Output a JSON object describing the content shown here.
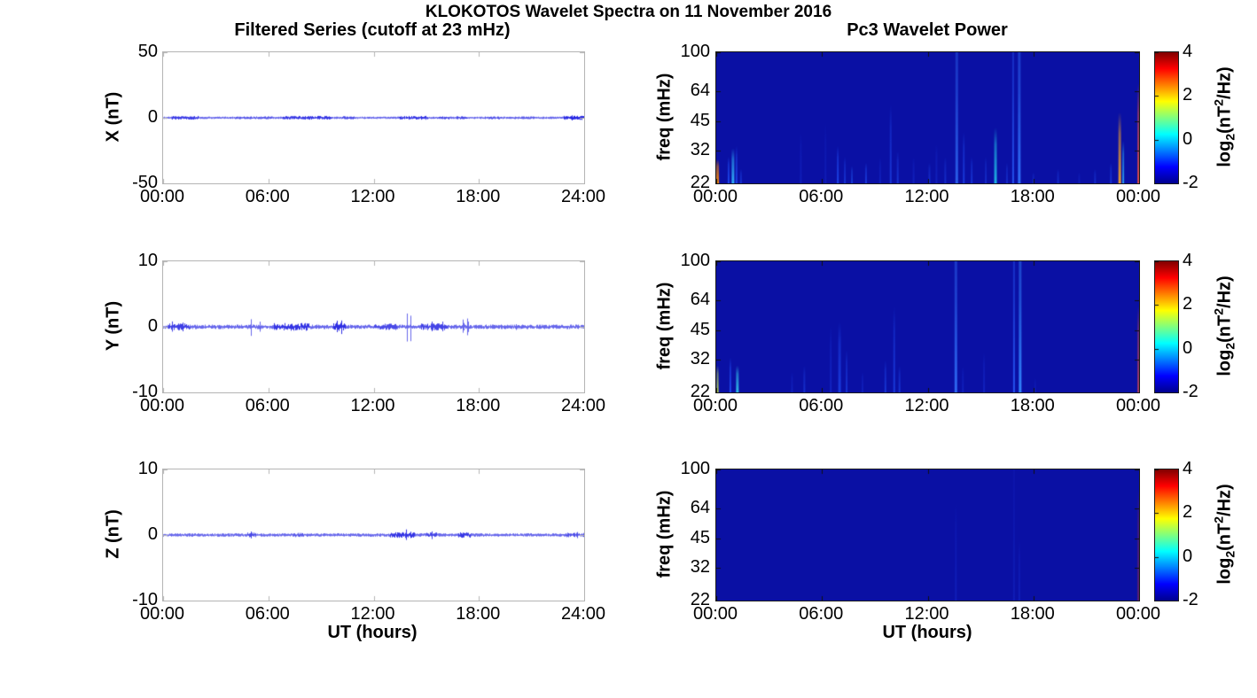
{
  "figure": {
    "title": "KLOKOTOS Wavelet Spectra on 11 November 2016",
    "left_column_title": "Filtered Series (cutoff at 23 mHz)",
    "right_column_title": "Pc3 Wavelet Power",
    "xlabel": "UT (hours)"
  },
  "colorbar": {
    "label_parts": {
      "pre": "log",
      "sub": "2",
      "mid": "(nT",
      "sup": "2",
      "post": "/Hz)"
    },
    "tick_labels": [
      "4",
      "2",
      "0",
      "-2"
    ],
    "tick_values": [
      4,
      2,
      0,
      -2
    ],
    "range": [
      -2,
      4
    ],
    "colormap": "jet",
    "gradient_stops": [
      "#00008f",
      "#0000ff",
      "#00ffff",
      "#ffff00",
      "#ff0000",
      "#800000"
    ],
    "gradient_positions": [
      0,
      0.125,
      0.375,
      0.625,
      0.875,
      1
    ]
  },
  "chart_data": [
    {
      "type": "line",
      "id": "series-x",
      "ylabel": "X (nT)",
      "ylim": [
        -50,
        50
      ],
      "ytick_labels": [
        "50",
        "0",
        "-50"
      ],
      "ytick_values": [
        50,
        0,
        -50
      ],
      "xtick_labels": [
        "00:00",
        "06:00",
        "12:00",
        "18:00",
        "24:00"
      ],
      "xtick_values": [
        0,
        6,
        12,
        18,
        24
      ],
      "x_range_hours": [
        0,
        24
      ],
      "line_color": "#0000dd",
      "noise_amp": 0.6,
      "dense_segments": [
        [
          0.5,
          2.0,
          1.8
        ],
        [
          4.0,
          6.2,
          1.3
        ],
        [
          6.8,
          9.6,
          1.9
        ],
        [
          10.2,
          10.9,
          1.5
        ],
        [
          13.4,
          15.1,
          2.0
        ],
        [
          15.6,
          16.3,
          1.6
        ],
        [
          16.7,
          17.4,
          1.6
        ],
        [
          18.3,
          19.3,
          1.4
        ],
        [
          20.0,
          21.2,
          1.2
        ],
        [
          22.8,
          24.0,
          2.2
        ]
      ],
      "spikes": [
        [
          1.0,
          1.6
        ],
        [
          8.9,
          1.4
        ],
        [
          14.0,
          2.0
        ],
        [
          15.9,
          1.5
        ],
        [
          23.3,
          2.0
        ],
        [
          23.6,
          2.0
        ]
      ]
    },
    {
      "type": "line",
      "id": "series-y",
      "ylabel": "Y (nT)",
      "ylim": [
        -10,
        10
      ],
      "ytick_labels": [
        "10",
        "0",
        "-10"
      ],
      "ytick_values": [
        10,
        0,
        -10
      ],
      "xtick_labels": [
        "00:00",
        "06:00",
        "12:00",
        "18:00",
        "24:00"
      ],
      "xtick_values": [
        0,
        6,
        12,
        18,
        24
      ],
      "x_range_hours": [
        0,
        24
      ],
      "line_color": "#0000dd",
      "noise_amp": 0.28,
      "dense_segments": [
        [
          0.3,
          1.5,
          1.7
        ],
        [
          6.3,
          8.3,
          1.9
        ],
        [
          9.7,
          10.4,
          2.0
        ],
        [
          12.0,
          13.3,
          1.5
        ],
        [
          14.7,
          16.2,
          1.6
        ]
      ],
      "spikes": [
        [
          0.5,
          0.9
        ],
        [
          1.1,
          0.9
        ],
        [
          5.0,
          1.4
        ],
        [
          5.5,
          1.0
        ],
        [
          9.9,
          1.6
        ],
        [
          10.15,
          1.3
        ],
        [
          13.9,
          2.6
        ],
        [
          14.1,
          2.4
        ],
        [
          15.3,
          1.2
        ],
        [
          15.9,
          1.3
        ],
        [
          17.1,
          2.2
        ],
        [
          17.35,
          2.0
        ],
        [
          20.1,
          0.6
        ]
      ]
    },
    {
      "type": "line",
      "id": "series-z",
      "ylabel": "Z (nT)",
      "ylim": [
        -10,
        10
      ],
      "ytick_labels": [
        "10",
        "0",
        "-10"
      ],
      "ytick_values": [
        10,
        0,
        -10
      ],
      "xtick_labels": [
        "00:00",
        "06:00",
        "12:00",
        "18:00",
        "24:00"
      ],
      "xtick_values": [
        0,
        6,
        12,
        18,
        24
      ],
      "x_range_hours": [
        0,
        24
      ],
      "line_color": "#0000dd",
      "noise_amp": 0.2,
      "dense_segments": [
        [
          4.8,
          5.3,
          1.5
        ],
        [
          7.4,
          8.0,
          1.3
        ],
        [
          12.9,
          14.3,
          1.9
        ],
        [
          15.0,
          15.6,
          1.6
        ],
        [
          16.8,
          17.5,
          1.8
        ],
        [
          22.9,
          24.0,
          1.4
        ]
      ],
      "spikes": [
        [
          5.0,
          0.6
        ],
        [
          13.85,
          0.9
        ],
        [
          14.1,
          0.7
        ],
        [
          15.3,
          0.7
        ],
        [
          17.1,
          0.8
        ],
        [
          23.6,
          0.5
        ]
      ]
    },
    {
      "type": "heatmap",
      "id": "wavelet-x",
      "ylabel": "freq (mHz)",
      "ylim": [
        22,
        100
      ],
      "yscale": "log",
      "ytick_labels": [
        "100",
        "64",
        "45",
        "32",
        "22"
      ],
      "ytick_values": [
        100,
        64,
        45,
        32,
        22
      ],
      "xtick_labels": [
        "00:00",
        "06:00",
        "12:00",
        "18:00",
        "00:00"
      ],
      "xtick_values": [
        0,
        6,
        12,
        18,
        24
      ],
      "background_color": "#0a10a4",
      "background_value": -2,
      "streaks": [
        [
          0.08,
          29,
          "#ff8c00",
          0.95,
          3
        ],
        [
          0.7,
          30,
          "#2255ff",
          0.8,
          2
        ],
        [
          0.95,
          33,
          "#33bbff",
          0.9,
          3
        ],
        [
          1.15,
          34,
          "#2255ff",
          0.7,
          2
        ],
        [
          1.4,
          26,
          "#2255ff",
          0.5,
          2
        ],
        [
          4.8,
          40,
          "#1a38e0",
          0.35,
          2
        ],
        [
          6.2,
          45,
          "#1a38e0",
          0.3,
          2
        ],
        [
          6.9,
          34,
          "#2255ff",
          0.75,
          2
        ],
        [
          7.3,
          30,
          "#2255ff",
          0.5,
          2
        ],
        [
          7.7,
          27,
          "#2266ff",
          0.5,
          2
        ],
        [
          8.5,
          28,
          "#2255ff",
          0.6,
          2
        ],
        [
          9.3,
          30,
          "#1a38e0",
          0.4,
          2
        ],
        [
          9.9,
          55,
          "#2255ff",
          0.55,
          2
        ],
        [
          10.3,
          32,
          "#2255ff",
          0.5,
          2
        ],
        [
          11.2,
          30,
          "#1a38e0",
          0.4,
          2
        ],
        [
          12.1,
          28,
          "#2255ff",
          0.45,
          2
        ],
        [
          12.5,
          35,
          "#1a38e0",
          0.4,
          2
        ],
        [
          13.0,
          30,
          "#2255ff",
          0.4,
          2
        ],
        [
          13.65,
          100,
          "#3377ff",
          0.75,
          3
        ],
        [
          14.05,
          40,
          "#2255ff",
          0.6,
          2
        ],
        [
          14.5,
          30,
          "#2255ff",
          0.5,
          2
        ],
        [
          15.3,
          30,
          "#2255ff",
          0.4,
          2
        ],
        [
          15.85,
          42,
          "#22ccee",
          0.85,
          3
        ],
        [
          16.5,
          28,
          "#2255ff",
          0.4,
          2
        ],
        [
          16.85,
          100,
          "#2a60ff",
          0.8,
          2
        ],
        [
          17.2,
          100,
          "#3377ff",
          0.9,
          3
        ],
        [
          18.0,
          25,
          "#2255ff",
          0.35,
          2
        ],
        [
          19.4,
          26,
          "#2255ff",
          0.4,
          2
        ],
        [
          20.6,
          25,
          "#1a38e0",
          0.35,
          2
        ],
        [
          21.5,
          26,
          "#2255ff",
          0.4,
          2
        ],
        [
          22.4,
          28,
          "#2255ff",
          0.5,
          2
        ],
        [
          22.9,
          50,
          "#ffaa22",
          0.9,
          3
        ],
        [
          23.1,
          36,
          "#33bbff",
          0.8,
          2
        ],
        [
          23.95,
          70,
          "#ff5533",
          0.8,
          2
        ]
      ]
    },
    {
      "type": "heatmap",
      "id": "wavelet-y",
      "ylabel": "freq (mHz)",
      "ylim": [
        22,
        100
      ],
      "yscale": "log",
      "ytick_labels": [
        "100",
        "64",
        "45",
        "32",
        "22"
      ],
      "ytick_values": [
        100,
        64,
        45,
        32,
        22
      ],
      "xtick_labels": [
        "00:00",
        "06:00",
        "12:00",
        "18:00",
        "00:00"
      ],
      "xtick_values": [
        0,
        6,
        12,
        18,
        24
      ],
      "background_color": "#0a10a4",
      "background_value": -2,
      "streaks": [
        [
          0.08,
          30,
          "#ccee44",
          0.9,
          2
        ],
        [
          0.8,
          33,
          "#2255ff",
          0.8,
          2
        ],
        [
          1.2,
          30,
          "#33ccee",
          0.9,
          3
        ],
        [
          4.3,
          28,
          "#1a38e0",
          0.4,
          2
        ],
        [
          5.0,
          30,
          "#2255ff",
          0.45,
          2
        ],
        [
          6.5,
          48,
          "#1a38e0",
          0.5,
          2
        ],
        [
          7.0,
          50,
          "#2255ff",
          0.6,
          3
        ],
        [
          7.4,
          36,
          "#2255ff",
          0.5,
          2
        ],
        [
          8.3,
          28,
          "#1a38e0",
          0.4,
          2
        ],
        [
          9.6,
          32,
          "#2255ff",
          0.55,
          2
        ],
        [
          10.1,
          60,
          "#2255ff",
          0.6,
          2
        ],
        [
          10.4,
          30,
          "#2255ff",
          0.5,
          2
        ],
        [
          13.6,
          100,
          "#3377ff",
          0.85,
          3
        ],
        [
          14.0,
          30,
          "#1a38e0",
          0.4,
          2
        ],
        [
          15.2,
          35,
          "#1a38e0",
          0.45,
          2
        ],
        [
          16.9,
          100,
          "#2a60ff",
          0.85,
          2
        ],
        [
          17.25,
          100,
          "#3388ff",
          0.95,
          3
        ],
        [
          18.1,
          26,
          "#1a38e0",
          0.3,
          2
        ],
        [
          23.95,
          60,
          "#ff5533",
          0.6,
          2
        ]
      ]
    },
    {
      "type": "heatmap",
      "id": "wavelet-z",
      "ylabel": "freq (mHz)",
      "ylim": [
        22,
        100
      ],
      "yscale": "log",
      "ytick_labels": [
        "100",
        "64",
        "45",
        "32",
        "22"
      ],
      "ytick_values": [
        100,
        64,
        45,
        32,
        22
      ],
      "xtick_labels": [
        "00:00",
        "06:00",
        "12:00",
        "18:00",
        "00:00"
      ],
      "xtick_values": [
        0,
        6,
        12,
        18,
        24
      ],
      "background_color": "#0a10a4",
      "background_value": -2,
      "streaks": [
        [
          13.6,
          70,
          "#1a38e0",
          0.35,
          2
        ],
        [
          16.9,
          100,
          "#1a38e0",
          0.3,
          2
        ],
        [
          17.2,
          45,
          "#1a38e0",
          0.35,
          2
        ],
        [
          23.95,
          80,
          "#cc3322",
          0.4,
          2
        ]
      ]
    }
  ]
}
